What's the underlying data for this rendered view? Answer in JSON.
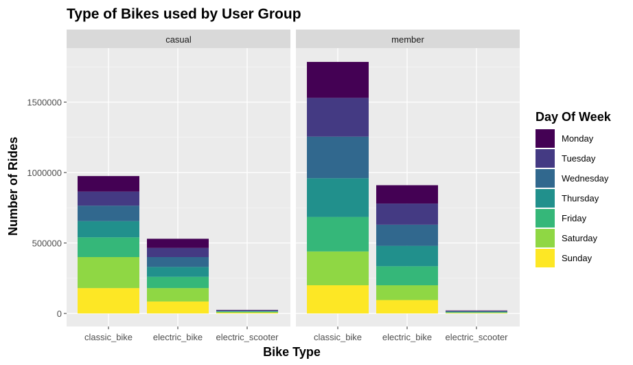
{
  "chart_data": {
    "type": "bar",
    "stacked": true,
    "title": "Type of Bikes used by User Group",
    "xlabel": "Bike Type",
    "ylabel": "Number of Rides",
    "ylim": [
      0,
      1900000
    ],
    "yticks": [
      0,
      500000,
      1000000,
      1500000
    ],
    "ytick_labels": [
      "0",
      "500000",
      "1000000",
      "1500000"
    ],
    "grid": true,
    "legend": {
      "title": "Day Of Week",
      "position": "right",
      "entries": [
        "Monday",
        "Tuesday",
        "Wednesday",
        "Thursday",
        "Friday",
        "Saturday",
        "Sunday"
      ]
    },
    "colors": {
      "Monday": "#440154",
      "Tuesday": "#443A83",
      "Wednesday": "#31688E",
      "Thursday": "#21908C",
      "Friday": "#35B779",
      "Saturday": "#8FD744",
      "Sunday": "#FDE725"
    },
    "categories": [
      "classic_bike",
      "electric_bike",
      "electric_scooter"
    ],
    "facets": [
      {
        "label": "casual",
        "series": [
          {
            "name": "Sunday",
            "values": [
              180000,
              85000,
              5000
            ]
          },
          {
            "name": "Saturday",
            "values": [
              220000,
              95000,
              5000
            ]
          },
          {
            "name": "Friday",
            "values": [
              140000,
              80000,
              3000
            ]
          },
          {
            "name": "Thursday",
            "values": [
              115000,
              70000,
              3000
            ]
          },
          {
            "name": "Wednesday",
            "values": [
              110000,
              70000,
              3000
            ]
          },
          {
            "name": "Tuesday",
            "values": [
              100000,
              65000,
              3000
            ]
          },
          {
            "name": "Monday",
            "values": [
              110000,
              65000,
              3000
            ]
          }
        ]
      },
      {
        "label": "member",
        "series": [
          {
            "name": "Sunday",
            "values": [
              200000,
              95000,
              3000
            ]
          },
          {
            "name": "Saturday",
            "values": [
              240000,
              105000,
              3000
            ]
          },
          {
            "name": "Friday",
            "values": [
              245000,
              135000,
              3000
            ]
          },
          {
            "name": "Thursday",
            "values": [
              275000,
              145000,
              3000
            ]
          },
          {
            "name": "Wednesday",
            "values": [
              295000,
              150000,
              3000
            ]
          },
          {
            "name": "Tuesday",
            "values": [
              275000,
              150000,
              3000
            ]
          },
          {
            "name": "Monday",
            "values": [
              255000,
              130000,
              3000
            ]
          }
        ]
      }
    ]
  }
}
